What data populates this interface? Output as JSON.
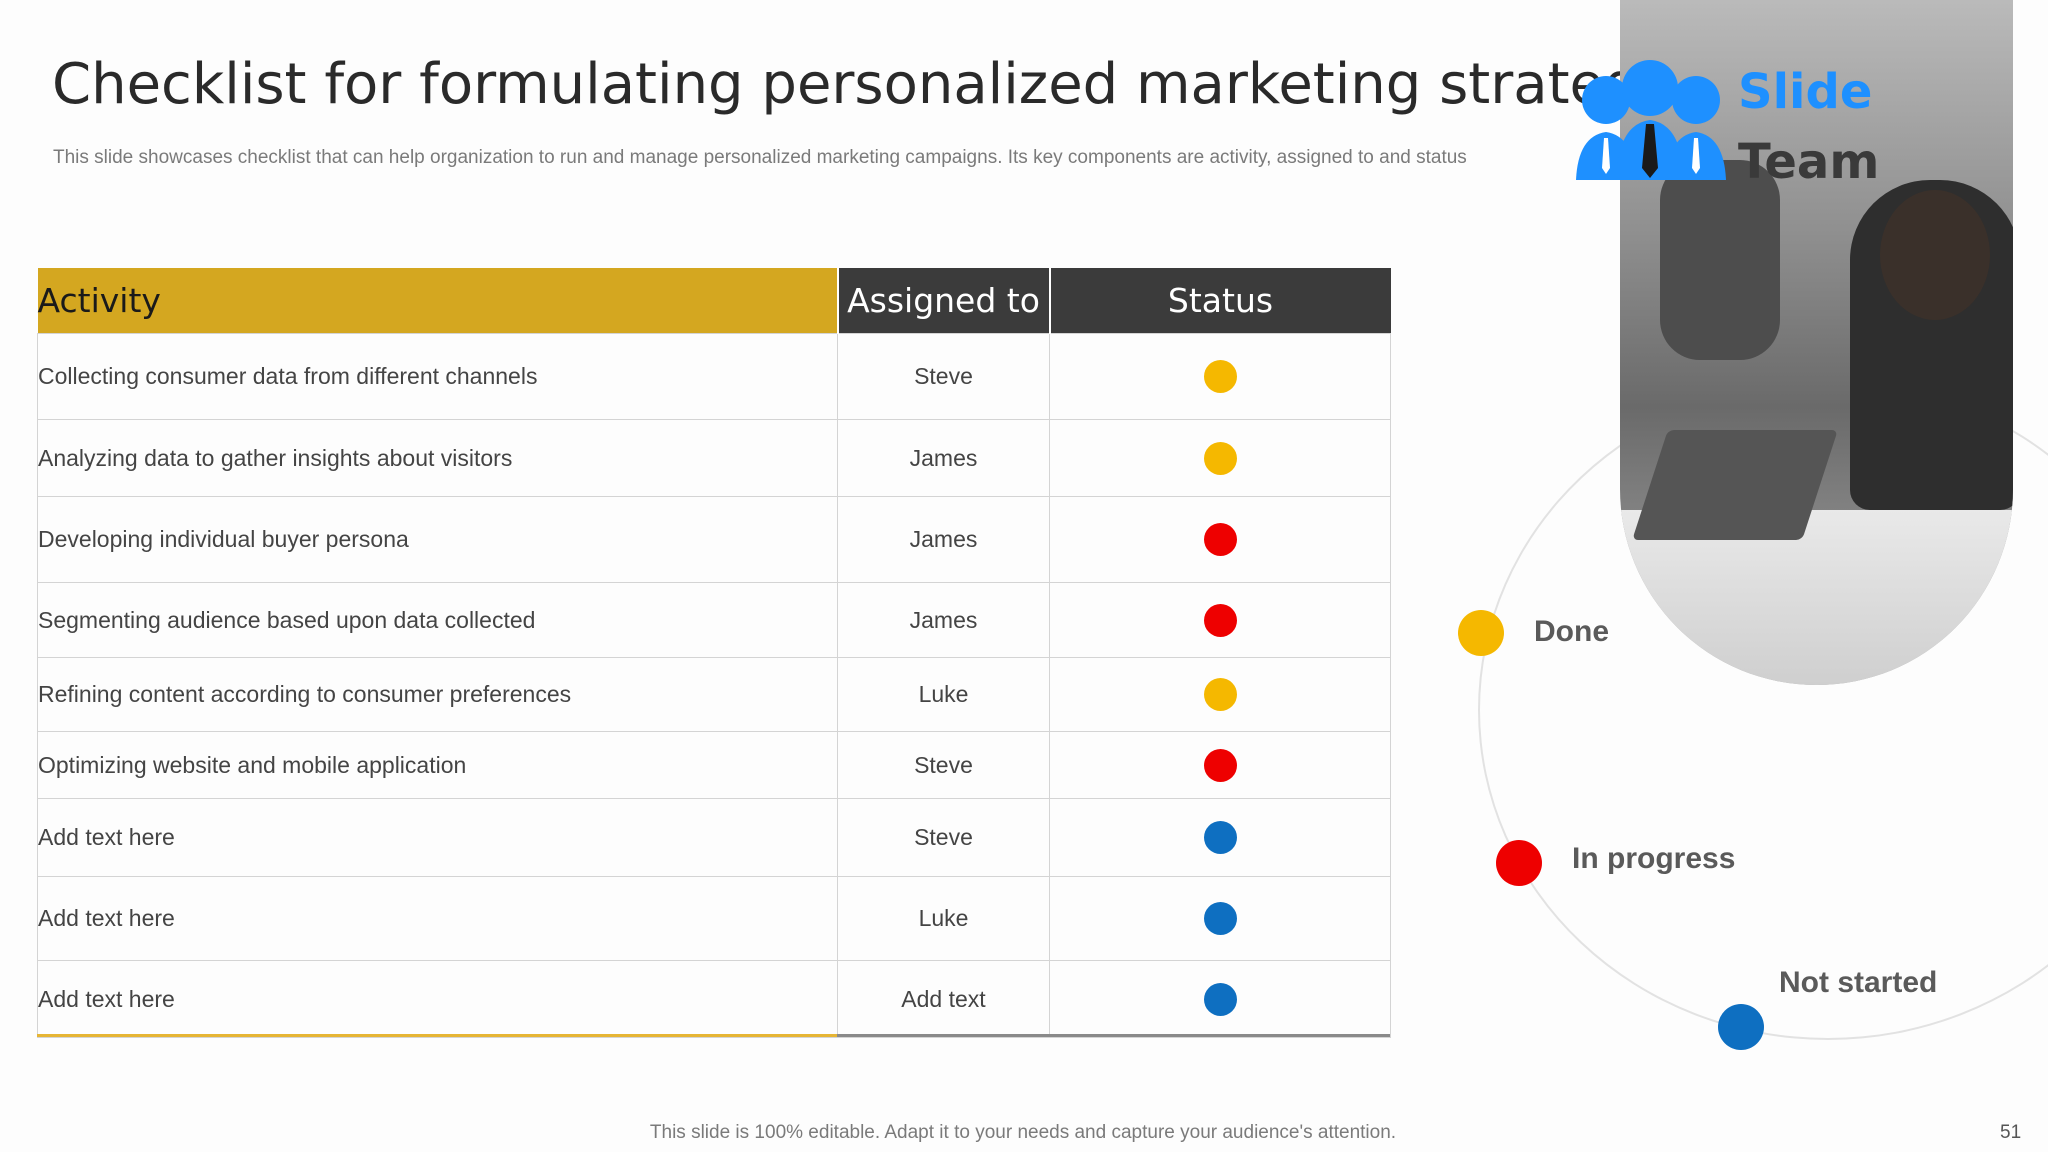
{
  "title": "Checklist for formulating personalized marketing strategy",
  "subtitle": "This slide showcases checklist that can help organization to run and manage personalized marketing campaigns. Its key components are activity, assigned to and status",
  "colors": {
    "accent_gold": "#d4a720",
    "header_dark": "#3b3b3b",
    "done": "#f5b800",
    "in_progress": "#ee0000",
    "not_started": "#0e6fc1"
  },
  "table": {
    "headers": {
      "activity": "Activity",
      "assigned": "Assigned to",
      "status": "Status"
    },
    "rows": [
      {
        "activity": "Collecting consumer data from different channels",
        "assigned": "Steve",
        "status": "done"
      },
      {
        "activity": "Analyzing data to gather insights about visitors",
        "assigned": "James",
        "status": "done"
      },
      {
        "activity": "Developing individual buyer persona",
        "assigned": "James",
        "status": "in_progress"
      },
      {
        "activity": "Segmenting audience based upon data collected",
        "assigned": "James",
        "status": "in_progress"
      },
      {
        "activity": "Refining content according to consumer preferences",
        "assigned": "Luke",
        "status": "done"
      },
      {
        "activity": "Optimizing website and mobile application",
        "assigned": "Steve",
        "status": "in_progress"
      },
      {
        "activity": "Add text here",
        "assigned": "Steve",
        "status": "not_started"
      },
      {
        "activity": "Add text here",
        "assigned": "Luke",
        "status": "not_started"
      },
      {
        "activity": "Add text here",
        "assigned": "Add text",
        "status": "not_started"
      }
    ]
  },
  "legend": {
    "done": "Done",
    "in_progress": "In progress",
    "not_started": "Not started"
  },
  "logo": {
    "line1": "Slide",
    "line2": "Team"
  },
  "footer": "This slide is 100% editable. Adapt it to your needs and capture your audience's attention.",
  "page_number": "51"
}
